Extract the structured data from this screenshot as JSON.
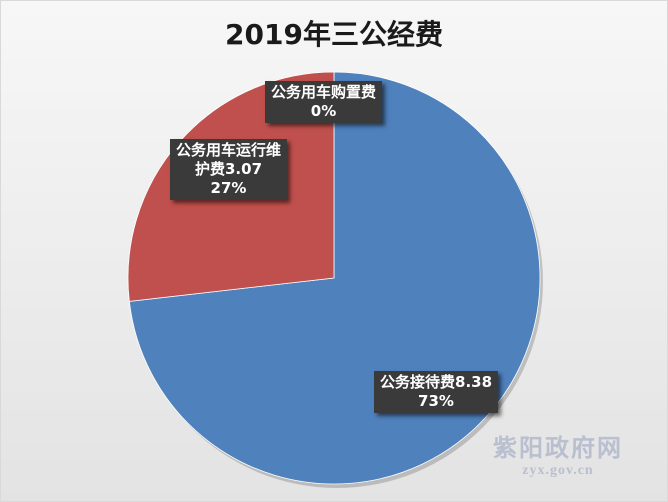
{
  "chart_data": {
    "type": "pie",
    "title": "2019年三公经费",
    "slices": [
      {
        "name": "公务接待费",
        "value": 8.38,
        "percent_label": "73%",
        "color": "#4f81bd"
      },
      {
        "name": "公务用车运行维护费",
        "value": 3.07,
        "percent_label": "27%",
        "color": "#c0504d"
      },
      {
        "name": "公务用车购置费",
        "value": 0,
        "percent_label": "0%",
        "color": "#9bbb59"
      }
    ],
    "labels": {
      "purchase": {
        "line1": "公务用车购置费",
        "line2": "0%"
      },
      "maintenance": {
        "line1": "公务用车运行维",
        "line2": "护费3.07",
        "line3": "27%"
      },
      "reception": {
        "line1": "公务接待费8.38",
        "line2": "73%"
      }
    },
    "start_angle_deg": 0,
    "direction": "clockwise"
  },
  "watermark": {
    "name": "紫阳政府网",
    "url": "zyx.gov.cn"
  }
}
